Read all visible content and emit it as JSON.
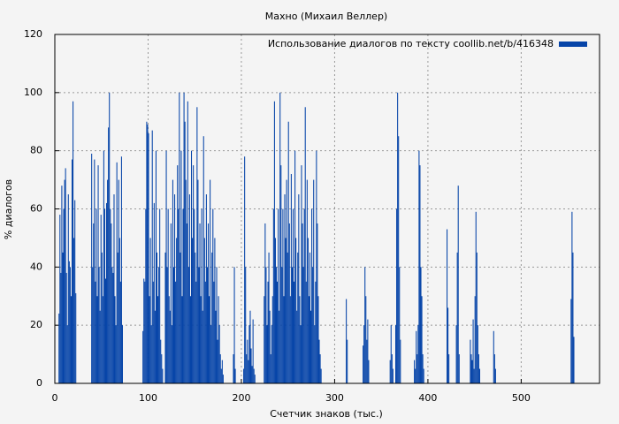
{
  "chart_data": {
    "type": "bar",
    "title": "Махно (Михаил Веллер)",
    "xlabel": "Счетчик знаков (тыс.)",
    "ylabel": "% диалогов",
    "series": [
      {
        "name": "Использование диалогов по тексту  coollib.net/b/416348",
        "color": "#0644a8",
        "x": [
          4,
          5,
          6,
          7,
          8,
          9,
          10,
          11,
          12,
          13,
          14,
          15,
          16,
          17,
          18,
          19,
          20,
          21,
          22,
          39,
          40,
          41,
          42,
          43,
          44,
          45,
          46,
          47,
          48,
          49,
          50,
          51,
          52,
          53,
          54,
          55,
          56,
          57,
          58,
          59,
          60,
          61,
          62,
          63,
          64,
          65,
          66,
          67,
          68,
          69,
          70,
          71,
          72,
          94,
          95,
          96,
          97,
          98,
          99,
          100,
          101,
          102,
          103,
          104,
          105,
          106,
          107,
          108,
          109,
          110,
          111,
          112,
          113,
          114,
          115,
          118,
          119,
          120,
          121,
          122,
          123,
          124,
          125,
          126,
          127,
          128,
          129,
          130,
          131,
          132,
          133,
          134,
          135,
          136,
          137,
          138,
          139,
          140,
          141,
          142,
          143,
          144,
          145,
          146,
          147,
          148,
          149,
          150,
          151,
          152,
          153,
          154,
          155,
          156,
          157,
          158,
          159,
          160,
          161,
          162,
          163,
          164,
          165,
          166,
          167,
          168,
          169,
          170,
          171,
          172,
          173,
          174,
          175,
          176,
          177,
          178,
          179,
          180,
          191,
          192,
          193,
          202,
          203,
          204,
          205,
          206,
          207,
          208,
          209,
          210,
          211,
          212,
          213,
          214,
          224,
          225,
          226,
          227,
          228,
          229,
          230,
          231,
          232,
          233,
          234,
          235,
          236,
          237,
          238,
          239,
          240,
          241,
          242,
          243,
          244,
          245,
          246,
          247,
          248,
          249,
          250,
          251,
          252,
          253,
          254,
          255,
          256,
          257,
          258,
          259,
          260,
          261,
          262,
          263,
          264,
          265,
          266,
          267,
          268,
          269,
          270,
          271,
          272,
          273,
          274,
          275,
          276,
          277,
          278,
          279,
          280,
          281,
          282,
          283,
          284,
          285,
          312,
          313,
          330,
          331,
          332,
          333,
          334,
          335,
          336,
          359,
          360,
          361,
          362,
          365,
          366,
          367,
          368,
          369,
          370,
          385,
          386,
          387,
          388,
          389,
          390,
          391,
          392,
          393,
          394,
          395,
          420,
          421,
          422,
          430,
          431,
          432,
          433,
          445,
          446,
          447,
          448,
          449,
          450,
          451,
          452,
          453,
          454,
          455,
          470,
          471,
          472,
          553,
          554,
          555,
          556
        ],
        "values": [
          24,
          58,
          38,
          68,
          45,
          60,
          70,
          74,
          38,
          20,
          65,
          42,
          40,
          30,
          77,
          97,
          50,
          63,
          31,
          79,
          40,
          55,
          77,
          35,
          60,
          30,
          75,
          40,
          25,
          58,
          45,
          30,
          80,
          60,
          36,
          62,
          70,
          88,
          100,
          60,
          55,
          40,
          38,
          65,
          30,
          20,
          76,
          45,
          70,
          50,
          35,
          78,
          20,
          18,
          36,
          35,
          60,
          90,
          89,
          86,
          30,
          50,
          20,
          87,
          35,
          62,
          25,
          80,
          45,
          30,
          40,
          60,
          15,
          10,
          5,
          45,
          80,
          40,
          60,
          30,
          25,
          55,
          20,
          70,
          40,
          65,
          35,
          50,
          75,
          60,
          100,
          45,
          80,
          30,
          60,
          100,
          90,
          70,
          55,
          97,
          40,
          65,
          30,
          80,
          50,
          75,
          60,
          45,
          35,
          95,
          70,
          40,
          55,
          30,
          60,
          25,
          85,
          50,
          35,
          65,
          40,
          55,
          30,
          70,
          20,
          45,
          60,
          35,
          50,
          25,
          40,
          15,
          30,
          20,
          10,
          5,
          8,
          3,
          10,
          40,
          5,
          5,
          78,
          40,
          10,
          15,
          8,
          20,
          25,
          12,
          6,
          22,
          5,
          3,
          30,
          55,
          40,
          20,
          35,
          45,
          25,
          10,
          20,
          30,
          60,
          97,
          50,
          40,
          35,
          60,
          25,
          100,
          75,
          40,
          60,
          30,
          65,
          50,
          70,
          45,
          90,
          55,
          30,
          72,
          40,
          60,
          35,
          80,
          50,
          25,
          45,
          65,
          30,
          20,
          75,
          55,
          40,
          60,
          95,
          35,
          70,
          50,
          30,
          45,
          25,
          60,
          40,
          70,
          20,
          35,
          80,
          55,
          30,
          15,
          10,
          5,
          29,
          15,
          13,
          20,
          40,
          30,
          15,
          22,
          8,
          8,
          20,
          10,
          5,
          20,
          60,
          100,
          85,
          40,
          15,
          8,
          5,
          18,
          10,
          20,
          80,
          75,
          40,
          30,
          10,
          5,
          53,
          26,
          10,
          20,
          45,
          68,
          10,
          15,
          10,
          8,
          22,
          5,
          30,
          59,
          45,
          20,
          10,
          5,
          18,
          10,
          5,
          29,
          59,
          45,
          16
        ]
      }
    ],
    "xlim": [
      0,
      584
    ],
    "xticks": [
      0,
      100,
      200,
      300,
      400,
      500
    ],
    "ylim": [
      0,
      120
    ],
    "yticks": [
      0,
      20,
      40,
      60,
      80,
      100,
      120
    ],
    "grid": true,
    "legend": "top-right"
  }
}
